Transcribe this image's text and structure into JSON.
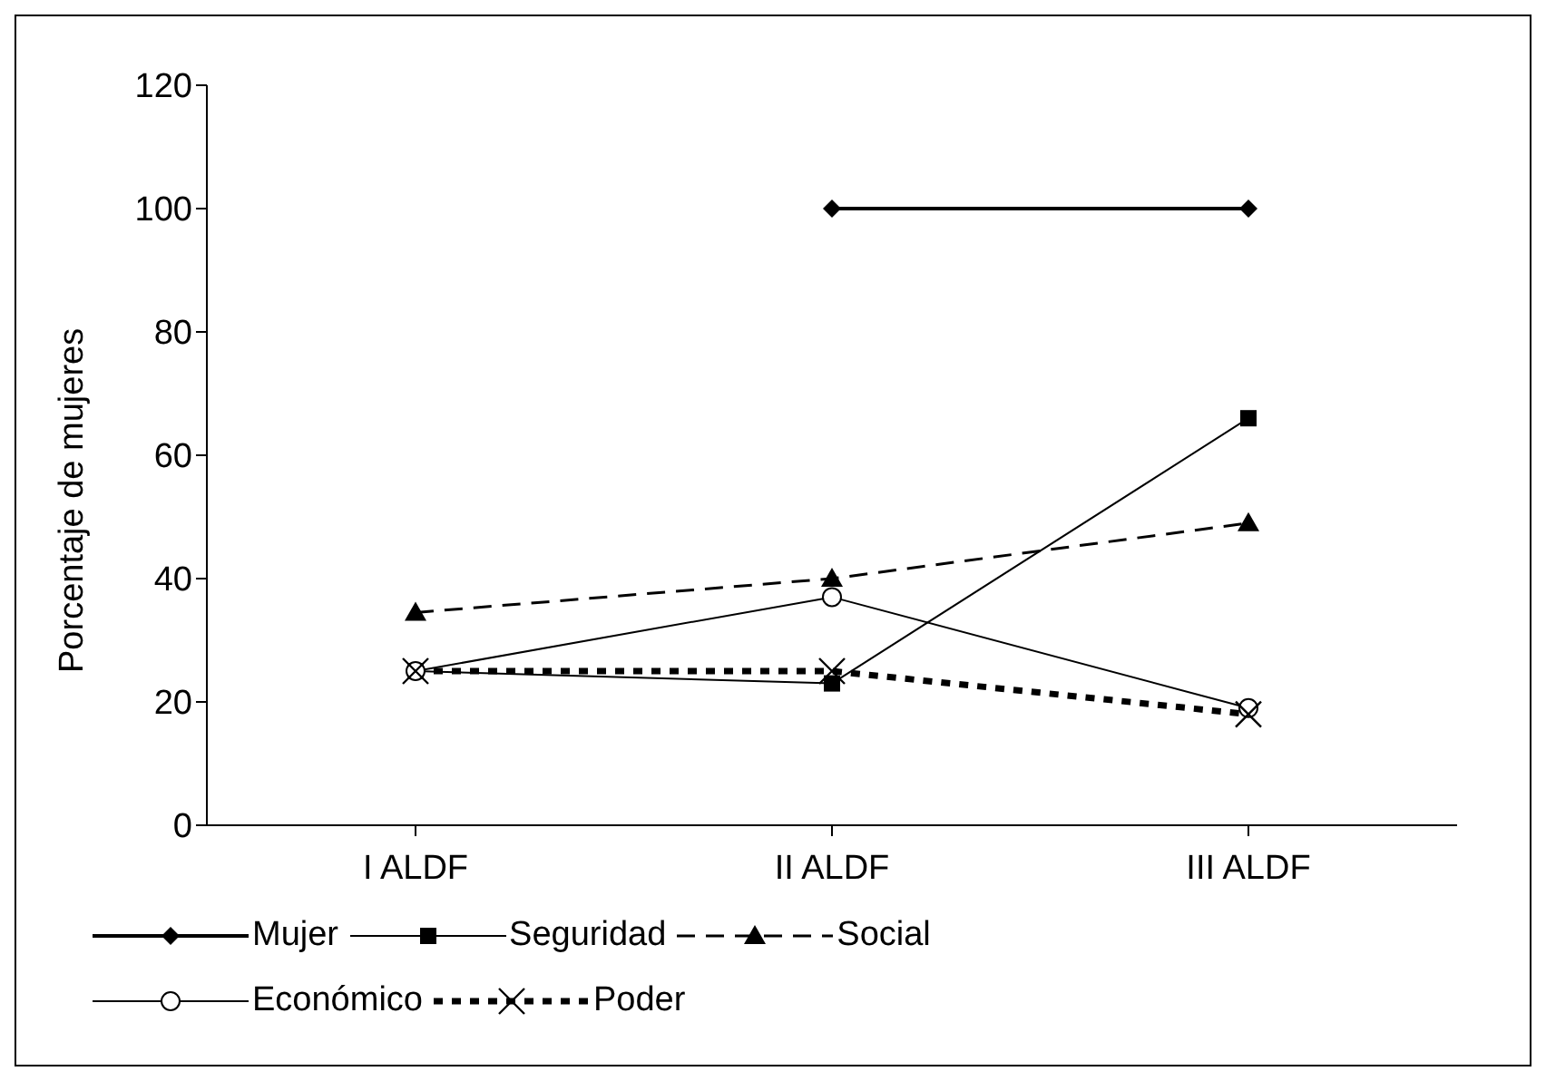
{
  "chart_data": {
    "type": "line",
    "ylabel": "Porcentaje de mujeres",
    "categories": [
      "I ALDF",
      "II ALDF",
      "III ALDF"
    ],
    "ylim": [
      0,
      120
    ],
    "yticks": [
      0,
      20,
      40,
      60,
      80,
      100,
      120
    ],
    "grid": false,
    "legend": "bottom",
    "series": [
      {
        "name": "Mujer",
        "color": "#000000",
        "marker": "diamond",
        "line_style": "solid",
        "values": [
          null,
          100,
          100
        ]
      },
      {
        "name": "Seguridad",
        "color": "#000000",
        "marker": "square",
        "line_style": "solid",
        "values": [
          25,
          23,
          66
        ]
      },
      {
        "name": "Social",
        "color": "#000000",
        "marker": "triangle",
        "line_style": "dashed",
        "values": [
          34.5,
          40,
          49
        ]
      },
      {
        "name": "Económico",
        "color": "#000000",
        "marker": "circle",
        "line_style": "solid",
        "values": [
          25,
          37,
          19
        ]
      },
      {
        "name": "Poder",
        "color": "#000000",
        "marker": "cross",
        "line_style": "dotted",
        "values": [
          25,
          25,
          18
        ]
      }
    ]
  }
}
